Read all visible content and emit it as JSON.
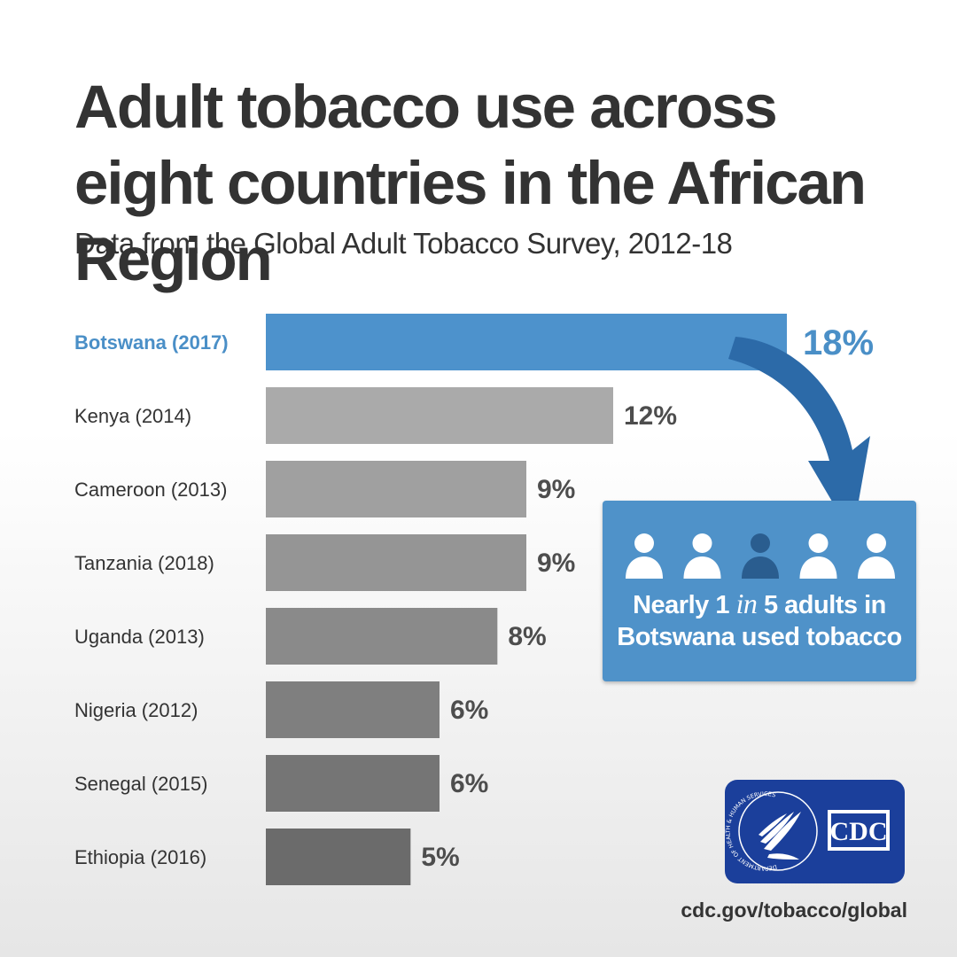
{
  "title": "Adult tobacco use across eight countries in the African Region",
  "subtitle": "Data from the Global Adult Tobacco Survey, 2012-18",
  "chart_data": {
    "type": "bar",
    "orientation": "horizontal",
    "categories": [
      "Botswana (2017)",
      "Kenya (2014)",
      "Cameroon (2013)",
      "Tanzania (2018)",
      "Uganda (2013)",
      "Nigeria (2012)",
      "Senegal (2015)",
      "Ethiopia (2016)"
    ],
    "values": [
      18,
      12,
      9,
      9,
      8,
      6,
      6,
      5
    ],
    "value_labels": [
      "18%",
      "12%",
      "9%",
      "9%",
      "8%",
      "6%",
      "6%",
      "5%"
    ],
    "highlight_index": 0,
    "colors": {
      "highlight": "#4d92cc",
      "bars": [
        "#4d92cc",
        "#aaaaaa",
        "#a0a0a0",
        "#959595",
        "#8a8a8a",
        "#7f7f7f",
        "#757575",
        "#6b6b6b"
      ]
    },
    "xlim": [
      0,
      18
    ],
    "grid": false,
    "legend": "none"
  },
  "callout": {
    "text_before": "Nearly 1 ",
    "text_emphasis": "in",
    "text_after": " 5 adults in",
    "line2": "Botswana used tobacco",
    "people_total": 5,
    "people_highlighted_index": 2,
    "icon": "person-icon",
    "background": "#4f92c9",
    "arrow_color": "#2c6aa8"
  },
  "logo": {
    "text": "CDC",
    "seal_text": "DEPARTMENT OF HEALTH & HUMAN SERVICES USA",
    "background": "#1b3f9b"
  },
  "footer": {
    "url": "cdc.gov/tobacco/global"
  }
}
